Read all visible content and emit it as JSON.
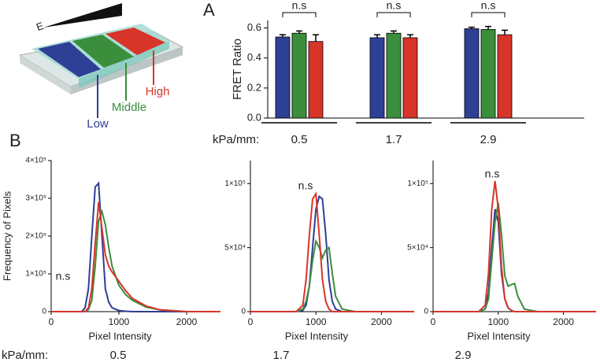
{
  "illustration": {
    "label": "E"
  },
  "chart_data": [
    {
      "type": "bar",
      "panel": "A",
      "y_label": "FRET Ratio",
      "x_label": "kPa/mm:",
      "categories": [
        "0.5",
        "1.7",
        "2.9"
      ],
      "series": [
        {
          "name": "Low",
          "color": "#2e3f96",
          "values": [
            0.54,
            0.535,
            0.595
          ],
          "errors": [
            0.015,
            0.02,
            0.01
          ]
        },
        {
          "name": "Middle",
          "color": "#3a8e3c",
          "values": [
            0.565,
            0.565,
            0.59
          ],
          "errors": [
            0.015,
            0.015,
            0.02
          ]
        },
        {
          "name": "High",
          "color": "#d7342a",
          "values": [
            0.51,
            0.535,
            0.555
          ],
          "errors": [
            0.045,
            0.02,
            0.03
          ]
        }
      ],
      "annotations": [
        "n.s",
        "n.s",
        "n.s"
      ],
      "ylim": [
        0,
        0.65
      ],
      "yticks": [
        {
          "value": 0,
          "label": "0.0"
        },
        0.2,
        0.4,
        0.6
      ]
    },
    {
      "type": "line",
      "panel": "B",
      "y_label": "Frequency of Pixels",
      "x_label": "Pixel Intensity",
      "caption_label": "kPa/mm:",
      "caption": "0.5",
      "annotation": "n.s",
      "x": [
        0,
        450,
        500,
        550,
        600,
        650,
        700,
        750,
        800,
        850,
        900,
        1000,
        1100,
        1200,
        1400,
        1600,
        2000,
        2500
      ],
      "series": [
        {
          "name": "Low",
          "color": "#2e3f96",
          "values": [
            0,
            0,
            10000,
            60000,
            200000,
            330000,
            340000,
            200000,
            60000,
            25000,
            10000,
            3000,
            1000,
            0,
            0,
            0,
            0,
            0
          ]
        },
        {
          "name": "Middle",
          "color": "#3a8e3c",
          "values": [
            0,
            0,
            0,
            5000,
            30000,
            120000,
            240000,
            265000,
            230000,
            170000,
            120000,
            70000,
            45000,
            30000,
            12000,
            5000,
            0,
            0
          ]
        },
        {
          "name": "High",
          "color": "#d7342a",
          "values": [
            0,
            0,
            0,
            10000,
            60000,
            180000,
            290000,
            220000,
            150000,
            120000,
            105000,
            80000,
            55000,
            35000,
            15000,
            5000,
            0,
            0
          ]
        }
      ],
      "xlim": [
        0,
        2500
      ],
      "xticks": [
        0,
        1000,
        2000
      ],
      "ylim": [
        0,
        400000
      ],
      "yticks": [
        0,
        {
          "value": 100000,
          "label": "1×10⁵"
        },
        {
          "value": 200000,
          "label": "2×10⁵"
        },
        {
          "value": 300000,
          "label": "3×10⁵"
        },
        {
          "value": 400000,
          "label": "4×10⁵"
        }
      ]
    },
    {
      "type": "line",
      "x_label": "Pixel Intensity",
      "caption": "1.7",
      "annotation": "n.s",
      "x": [
        0,
        700,
        800,
        850,
        900,
        950,
        1000,
        1050,
        1100,
        1150,
        1200,
        1250,
        1300,
        1400,
        1600,
        2500
      ],
      "series": [
        {
          "name": "Low",
          "color": "#2e3f96",
          "values": [
            0,
            0,
            1000,
            5000,
            20000,
            50000,
            80000,
            90000,
            88000,
            60000,
            25000,
            8000,
            2000,
            0,
            0,
            0
          ]
        },
        {
          "name": "Middle",
          "color": "#3a8e3c",
          "values": [
            0,
            0,
            2000,
            8000,
            20000,
            40000,
            55000,
            50000,
            42000,
            48000,
            50000,
            30000,
            12000,
            2000,
            0,
            0
          ]
        },
        {
          "name": "High",
          "color": "#d7342a",
          "values": [
            0,
            0,
            5000,
            25000,
            60000,
            88000,
            92000,
            60000,
            25000,
            8000,
            2000,
            0,
            0,
            0,
            0,
            0
          ]
        }
      ],
      "xlim": [
        0,
        2500
      ],
      "xticks": [
        0,
        1000,
        2000
      ],
      "ylim": [
        0,
        118000
      ],
      "yticks": [
        0,
        {
          "value": 50000,
          "label": "5×10⁴"
        },
        {
          "value": 100000,
          "label": "1×10⁵"
        }
      ]
    },
    {
      "type": "line",
      "x_label": "Pixel Intensity",
      "caption": "2.9",
      "annotation": "n.s",
      "x": [
        0,
        700,
        800,
        850,
        900,
        950,
        1000,
        1050,
        1100,
        1150,
        1200,
        1250,
        1300,
        1400,
        1600,
        2500
      ],
      "series": [
        {
          "name": "Low",
          "color": "#2e3f96",
          "values": [
            0,
            0,
            2000,
            15000,
            50000,
            80000,
            70000,
            30000,
            10000,
            3000,
            1000,
            0,
            0,
            0,
            0,
            0
          ]
        },
        {
          "name": "Middle",
          "color": "#3a8e3c",
          "values": [
            0,
            0,
            2000,
            10000,
            40000,
            70000,
            85000,
            60000,
            28000,
            20000,
            21000,
            22000,
            12000,
            2000,
            0,
            0
          ]
        },
        {
          "name": "High",
          "color": "#d7342a",
          "values": [
            0,
            0,
            5000,
            30000,
            80000,
            102000,
            80000,
            35000,
            10000,
            3000,
            1000,
            0,
            0,
            0,
            0,
            0
          ]
        }
      ],
      "xlim": [
        0,
        2500
      ],
      "xticks": [
        0,
        1000,
        2000
      ],
      "ylim": [
        0,
        118000
      ],
      "yticks": [
        0,
        {
          "value": 50000,
          "label": "5×10⁴"
        },
        {
          "value": 100000,
          "label": "1×10⁵"
        }
      ]
    }
  ]
}
